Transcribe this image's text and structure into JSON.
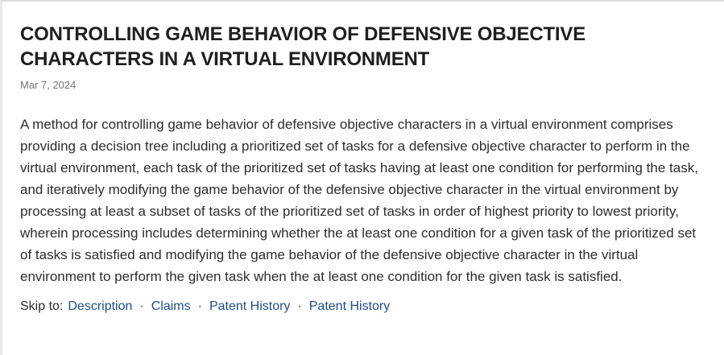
{
  "patent": {
    "title": "CONTROLLING GAME BEHAVIOR OF DEFENSIVE OBJECTIVE CHARACTERS IN A VIRTUAL ENVIRONMENT",
    "date": "Mar 7, 2024",
    "abstract": "A method for controlling game behavior of defensive objective characters in a virtual environment comprises providing a decision tree including a prioritized set of tasks for a defensive objective character to perform in the virtual environment, each task of the prioritized set of tasks having at least one condition for performing the task, and iteratively modifying the game behavior of the defensive objective character in the virtual environment by processing at least a subset of tasks of the prioritized set of tasks in order of highest priority to lowest priority, wherein processing includes determining whether the at least one condition for a given task of the prioritized set of tasks is satisfied and modifying the game behavior of the defensive objective character in the virtual environment to perform the given task when the at least one condition for the given task is satisfied."
  },
  "skip_nav": {
    "label": "Skip to:",
    "separator": "·",
    "links": [
      {
        "label": "Description"
      },
      {
        "label": "Claims"
      },
      {
        "label": "Patent History"
      },
      {
        "label": "Patent History"
      }
    ]
  },
  "colors": {
    "title": "#1f1f1f",
    "body": "#2d2d2d",
    "date": "#757575",
    "link": "#1d4e89",
    "separator": "#333333",
    "border-left": "#e7e7e7",
    "border-top": "#dcdcdc",
    "page-bg": "#ffffff"
  }
}
